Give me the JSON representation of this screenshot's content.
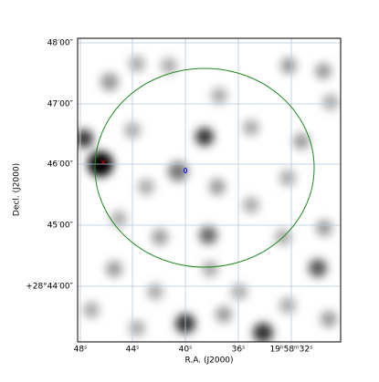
{
  "axes": {
    "x_label": "R.A. (J2000)",
    "y_label": "Decl. (J2000)",
    "x_ticks": [
      "48ˢ",
      "44ˢ",
      "40ˢ",
      "36ˢ",
      "19ʰ58ᵐ32ˢ"
    ],
    "y_ticks": [
      "48′00″",
      "47′00″",
      "46′00″",
      "45′00″",
      "+28°44′00″"
    ]
  }
}
